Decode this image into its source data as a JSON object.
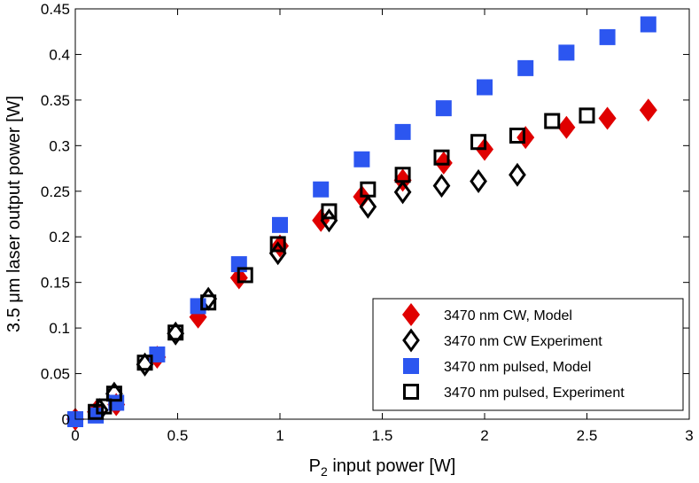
{
  "chart_data": {
    "type": "scatter",
    "xlabel_main": "P",
    "xlabel_sub": "2",
    "xlabel_rest": " input power [W]",
    "ylabel": "3.5 μm laser output power [W]",
    "xlim": [
      0,
      3
    ],
    "ylim": [
      0,
      0.45
    ],
    "xticks": [
      0,
      0.5,
      1,
      1.5,
      2,
      2.5,
      3
    ],
    "xtick_labels": [
      "0",
      "0.5",
      "1",
      "1.5",
      "2",
      "2.5",
      "3"
    ],
    "yticks": [
      0,
      0.05,
      0.1,
      0.15,
      0.2,
      0.25,
      0.3,
      0.35,
      0.4,
      0.45
    ],
    "ytick_labels": [
      "0",
      "0.05",
      "0.1",
      "0.15",
      "0.2",
      "0.25",
      "0.3",
      "0.35",
      "0.4",
      "0.45"
    ],
    "grid": false,
    "legend_position": "bottom-right",
    "series": [
      {
        "name": "3470 nm CW, Model",
        "marker": "diamond-filled",
        "color": "#e00000",
        "x": [
          0.0,
          0.1,
          0.2,
          0.4,
          0.6,
          0.8,
          1.0,
          1.2,
          1.4,
          1.6,
          1.8,
          2.0,
          2.2,
          2.4,
          2.6,
          2.8
        ],
        "y": [
          0.0,
          0.008,
          0.016,
          0.068,
          0.112,
          0.155,
          0.19,
          0.218,
          0.244,
          0.262,
          0.281,
          0.296,
          0.309,
          0.32,
          0.33,
          0.339
        ]
      },
      {
        "name": "3470 nm CW Experiment",
        "marker": "diamond-open",
        "color": "#000000",
        "x": [
          0.12,
          0.19,
          0.34,
          0.49,
          0.65,
          0.99,
          1.24,
          1.43,
          1.6,
          1.79,
          1.97,
          2.16
        ],
        "y": [
          0.01,
          0.028,
          0.06,
          0.094,
          0.132,
          0.182,
          0.218,
          0.233,
          0.249,
          0.256,
          0.261,
          0.268
        ]
      },
      {
        "name": "3470 nm pulsed, Model",
        "marker": "square-filled",
        "color": "#2c56f0",
        "x": [
          0.0,
          0.1,
          0.2,
          0.4,
          0.6,
          0.8,
          1.0,
          1.2,
          1.4,
          1.6,
          1.8,
          2.0,
          2.2,
          2.4,
          2.6,
          2.8
        ],
        "y": [
          0.0,
          0.004,
          0.018,
          0.071,
          0.124,
          0.17,
          0.213,
          0.252,
          0.285,
          0.315,
          0.341,
          0.364,
          0.385,
          0.402,
          0.419,
          0.433
        ]
      },
      {
        "name": "3470 nm pulsed, Experiment",
        "marker": "square-open",
        "color": "#000000",
        "x": [
          0.1,
          0.14,
          0.19,
          0.34,
          0.49,
          0.65,
          0.83,
          0.99,
          1.24,
          1.43,
          1.6,
          1.79,
          1.97,
          2.16,
          2.33,
          2.5
        ],
        "y": [
          0.008,
          0.014,
          0.028,
          0.062,
          0.095,
          0.128,
          0.158,
          0.192,
          0.228,
          0.252,
          0.268,
          0.287,
          0.304,
          0.311,
          0.327,
          0.333
        ]
      }
    ]
  }
}
